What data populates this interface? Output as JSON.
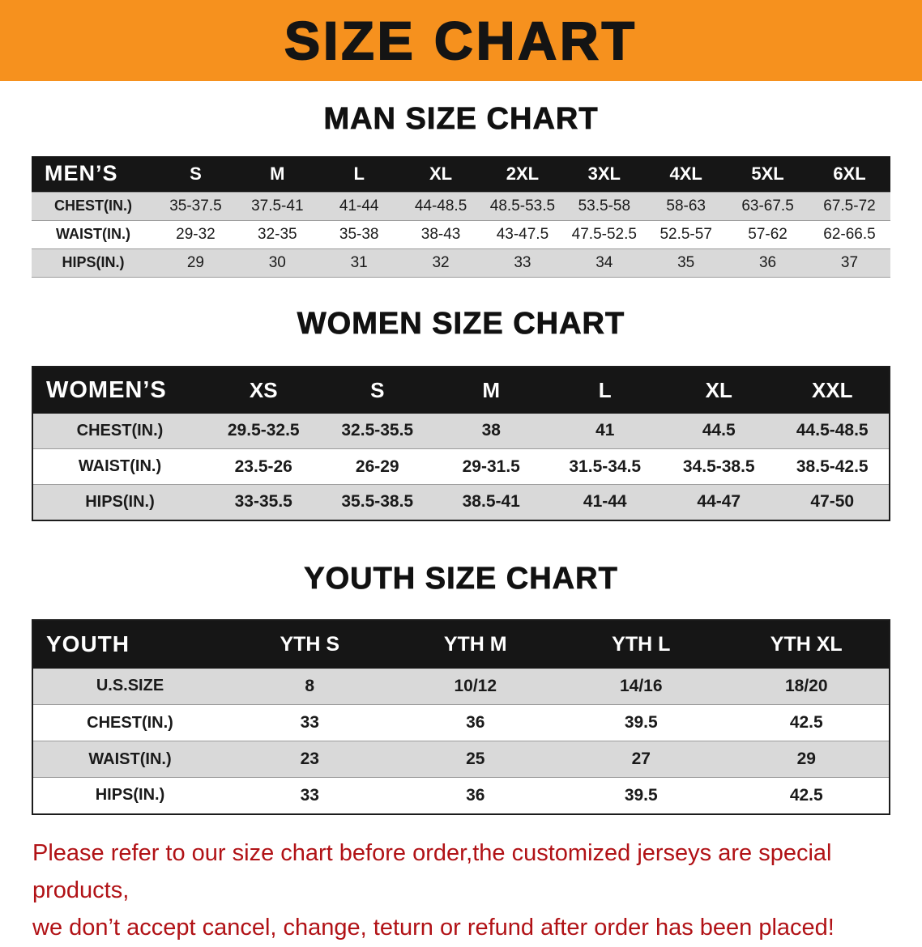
{
  "banner": {
    "title": "SIZE CHART"
  },
  "colors": {
    "banner_bg": "#f6911e",
    "header_bg": "#161616",
    "row_alt": "#d9d9d9",
    "note_red": "#b11216"
  },
  "sections": [
    {
      "id": "men",
      "heading": "MAN SIZE CHART",
      "table": {
        "corner": "MEN’S",
        "columns": [
          "S",
          "M",
          "L",
          "XL",
          "2XL",
          "3XL",
          "4XL",
          "5XL",
          "6XL"
        ],
        "rows": [
          {
            "label": "CHEST(IN.)",
            "values": [
              "35-37.5",
              "37.5-41",
              "41-44",
              "44-48.5",
              "48.5-53.5",
              "53.5-58",
              "58-63",
              "63-67.5",
              "67.5-72"
            ]
          },
          {
            "label": "WAIST(IN.)",
            "values": [
              "29-32",
              "32-35",
              "35-38",
              "38-43",
              "43-47.5",
              "47.5-52.5",
              "52.5-57",
              "57-62",
              "62-66.5"
            ]
          },
          {
            "label": "HIPS(IN.)",
            "values": [
              "29",
              "30",
              "31",
              "32",
              "33",
              "34",
              "35",
              "36",
              "37"
            ]
          }
        ]
      }
    },
    {
      "id": "women",
      "heading": "WOMEN SIZE CHART",
      "table": {
        "corner": "WOMEN’S",
        "columns": [
          "XS",
          "S",
          "M",
          "L",
          "XL",
          "XXL"
        ],
        "rows": [
          {
            "label": "CHEST(IN.)",
            "values": [
              "29.5-32.5",
              "32.5-35.5",
              "38",
              "41",
              "44.5",
              "44.5-48.5"
            ]
          },
          {
            "label": "WAIST(IN.)",
            "values": [
              "23.5-26",
              "26-29",
              "29-31.5",
              "31.5-34.5",
              "34.5-38.5",
              "38.5-42.5"
            ]
          },
          {
            "label": "HIPS(IN.)",
            "values": [
              "33-35.5",
              "35.5-38.5",
              "38.5-41",
              "41-44",
              "44-47",
              "47-50"
            ]
          }
        ]
      }
    },
    {
      "id": "youth",
      "heading": "YOUTH SIZE CHART",
      "table": {
        "corner": "YOUTH",
        "columns": [
          "YTH S",
          "YTH M",
          "YTH L",
          "YTH XL"
        ],
        "rows": [
          {
            "label": "U.S.SIZE",
            "values": [
              "8",
              "10/12",
              "14/16",
              "18/20"
            ]
          },
          {
            "label": "CHEST(IN.)",
            "values": [
              "33",
              "36",
              "39.5",
              "42.5"
            ]
          },
          {
            "label": "WAIST(IN.)",
            "values": [
              "23",
              "25",
              "27",
              "29"
            ]
          },
          {
            "label": "HIPS(IN.)",
            "values": [
              "33",
              "36",
              "39.5",
              "42.5"
            ]
          }
        ]
      }
    }
  ],
  "footer": {
    "line1": "Please refer to our size chart before order,the customized jerseys are special products,",
    "line2": "we don’t accept cancel, change, teturn or refund after order has been placed!"
  }
}
